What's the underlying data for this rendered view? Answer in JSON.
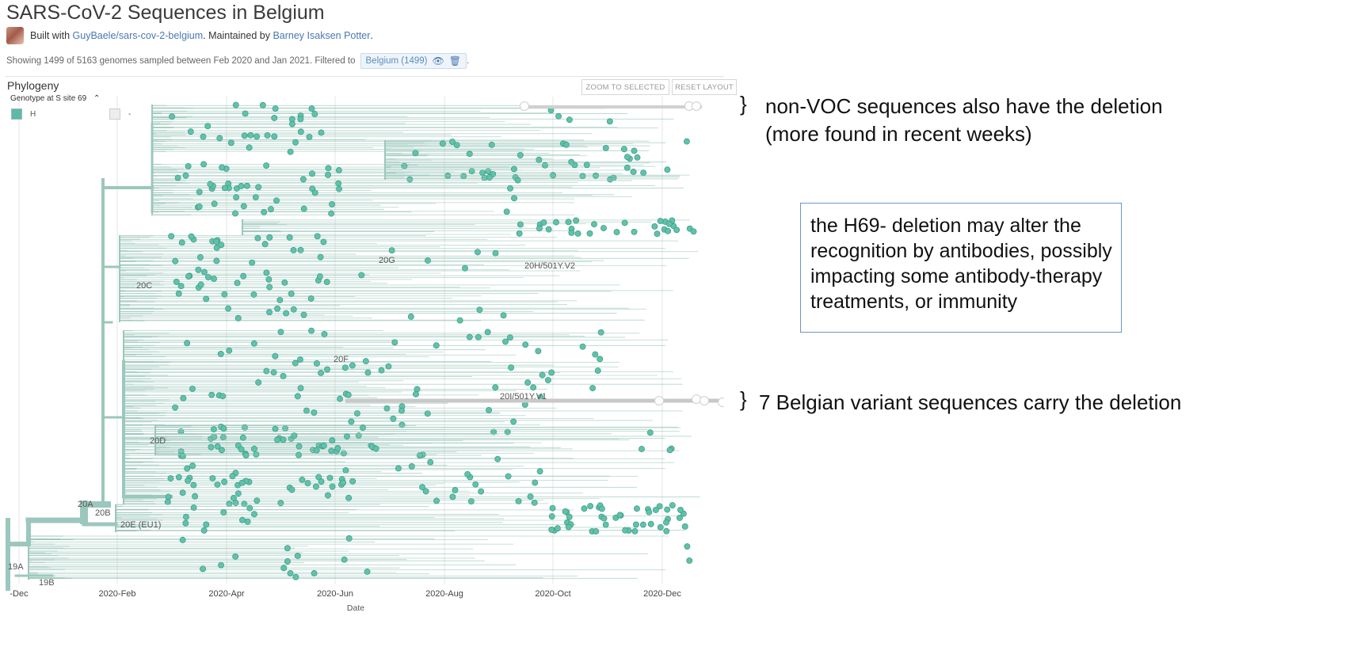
{
  "header": {
    "title": "SARS-CoV-2 Sequences in Belgium",
    "built_with_prefix": "Built with",
    "repo_link": "GuyBaele/sars-cov-2-belgium",
    "maintained_prefix": ". Maintained by",
    "maintainer_link": "Barney Isaksen Potter",
    "period": "."
  },
  "filter": {
    "summary": "Showing 1499 of 5163 genomes sampled between Feb 2020 and Jan 2021. Filtered to",
    "badge": "Belgium (1499)",
    "badge_icons": [
      "eye-icon",
      "trash-icon"
    ],
    "trailing": "."
  },
  "panel": {
    "title": "Phylogeny",
    "zoom_to_selected": "ZOOM TO SELECTED",
    "reset_layout": "RESET LAYOUT",
    "color_by": "Genotype at S site 69",
    "legend": [
      {
        "label": "H",
        "color": "#5fb8a8"
      },
      {
        "label": "-",
        "color": "#ededed"
      }
    ]
  },
  "clades": [
    "19A",
    "19B",
    "20A",
    "20B",
    "20C",
    "20D",
    "20E (EU1)",
    "20F",
    "20G",
    "20H/501Y.V2",
    "20I/501Y.V1"
  ],
  "axis": {
    "ticks": [
      "-Dec",
      "2020-Feb",
      "2020-Apr",
      "2020-Jun",
      "2020-Aug",
      "2020-Oct",
      "2020-Dec"
    ],
    "title": "Date"
  },
  "annotations": {
    "top_brace": "}",
    "top_line1": "non-VOC sequences also have the deletion",
    "top_line2": "(more found in recent weeks)",
    "box_text": "the H69- deletion may alter the recognition by antibodies, possibly impacting some antibody-therapy treatments, or immunity",
    "bottom_brace": "}",
    "bottom_text": "7 Belgian variant sequences carry the deletion"
  },
  "colors": {
    "branch": "#9cc7bc",
    "tip": "#5fc2aa",
    "tip_stroke": "#3f9884",
    "deletion_tip": "#ffffff",
    "grid": "#e4e4e4",
    "link": "#4a78b3",
    "box_border": "#6f93c8"
  }
}
